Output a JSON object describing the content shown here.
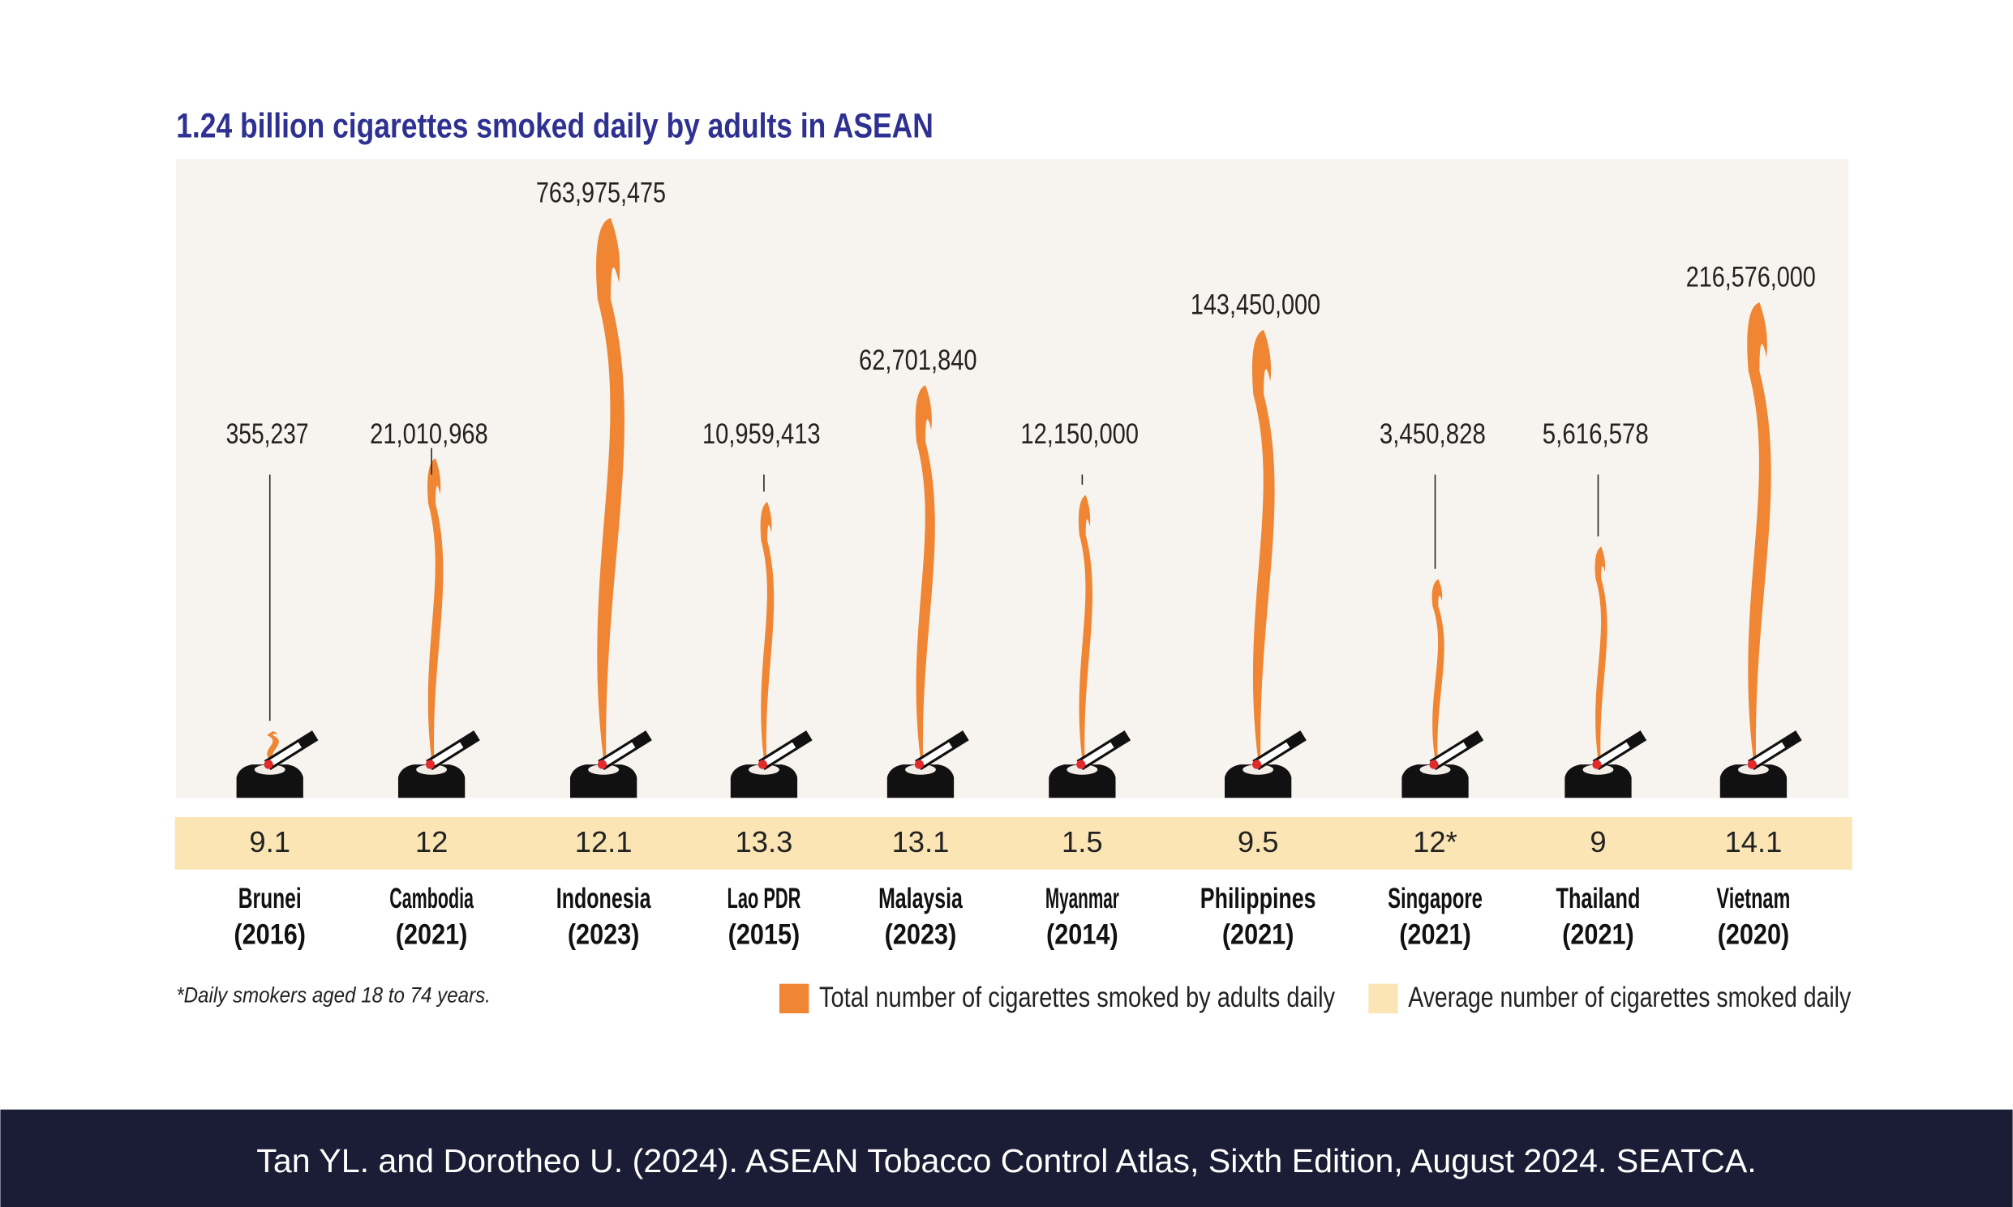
{
  "chart_data": {
    "type": "smoke",
    "title": "1.24 billion cigarettes smoked daily by adults in ASEAN",
    "categories": [
      "Brunei",
      "Cambodia",
      "Indonesia",
      "Lao PDR",
      "Malaysia",
      "Myanmar",
      "Philippines",
      "Singapore",
      "Thailand",
      "Vietnam"
    ],
    "years": [
      "(2016)",
      "(2021)",
      "(2023)",
      "(2015)",
      "(2023)",
      "(2014)",
      "(2021)",
      "(2021)",
      "(2021)",
      "(2020)"
    ],
    "log_scale": true,
    "series": [
      {
        "name": "Total number of cigarettes smoked by adults daily",
        "color": "#f08533",
        "values": [
          355237,
          21010968,
          763975475,
          10959413,
          62701840,
          12150000,
          143450000,
          3450828,
          5616578,
          216576000
        ],
        "value_labels": [
          "355,237",
          "21,010,968",
          "763,975,475",
          "10,959,413",
          "62,701,840",
          "12,150,000",
          "143,450,000",
          "3,450,828",
          "5,616,578",
          "216,576,000"
        ]
      },
      {
        "name": "Average number of cigarettes smoked daily",
        "color": "#fbe5b5",
        "values": [
          9.1,
          12,
          12.1,
          13.3,
          13.1,
          1.5,
          9.5,
          12,
          9,
          14.1
        ],
        "value_labels": [
          "9.1",
          "12",
          "12.1",
          "13.3",
          "13.1",
          "1.5",
          "9.5",
          "12*",
          "9",
          "14.1"
        ]
      }
    ],
    "footnote": "*Daily smokers aged 18 to 74 years.",
    "source": "Tan YL. and Dorotheo U. (2024). ASEAN Tobacco Control Atlas, Sixth Edition, August 2024. SEATCA."
  }
}
